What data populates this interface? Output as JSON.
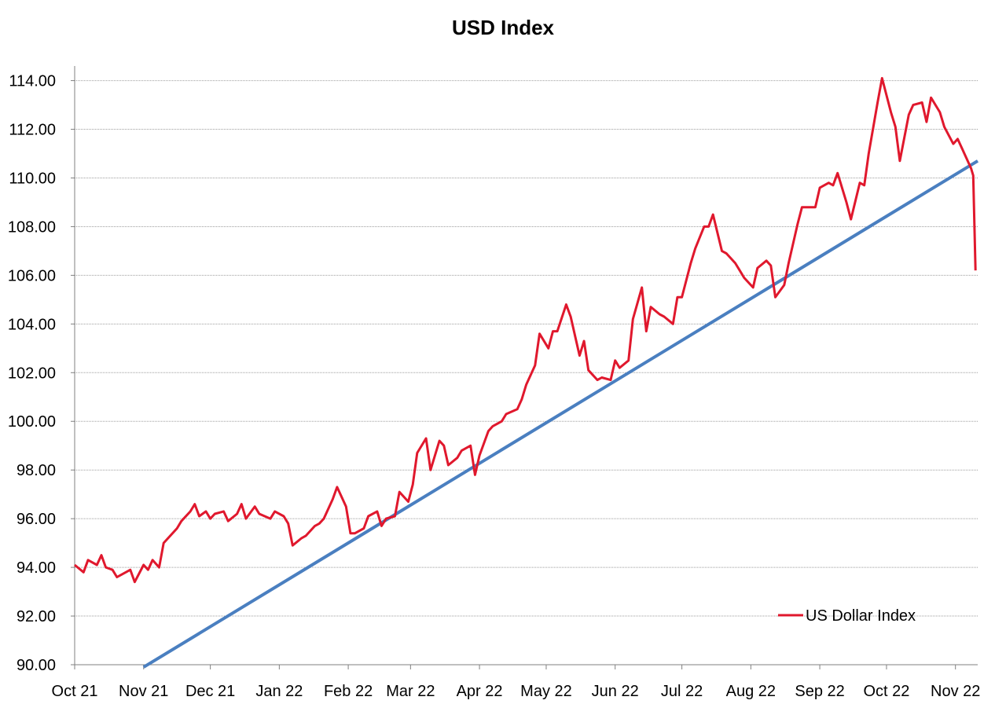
{
  "chart_data": {
    "type": "line",
    "title": "USD Index",
    "xlabel": "",
    "ylabel": "",
    "ylim": [
      90,
      114.6
    ],
    "yticks": [
      "90.00",
      "92.00",
      "94.00",
      "96.00",
      "98.00",
      "100.00",
      "102.00",
      "104.00",
      "106.00",
      "108.00",
      "110.00",
      "112.00",
      "114.00"
    ],
    "ytick_values": [
      90,
      92,
      94,
      96,
      98,
      100,
      102,
      104,
      106,
      108,
      110,
      112,
      114
    ],
    "xlim": [
      "2021-10-01",
      "2022-11-11"
    ],
    "xticks": [
      {
        "label": "Oct 21",
        "date": "2021-10-01"
      },
      {
        "label": "Nov 21",
        "date": "2021-11-01"
      },
      {
        "label": "Dec 21",
        "date": "2021-12-01"
      },
      {
        "label": "Jan 22",
        "date": "2022-01-01"
      },
      {
        "label": "Feb 22",
        "date": "2022-02-01"
      },
      {
        "label": "Mar 22",
        "date": "2022-03-01"
      },
      {
        "label": "Apr 22",
        "date": "2022-04-01"
      },
      {
        "label": "May 22",
        "date": "2022-05-01"
      },
      {
        "label": "Jun 22",
        "date": "2022-06-01"
      },
      {
        "label": "Jul 22",
        "date": "2022-07-01"
      },
      {
        "label": "Aug 22",
        "date": "2022-08-01"
      },
      {
        "label": "Sep 22",
        "date": "2022-09-01"
      },
      {
        "label": "Oct 22",
        "date": "2022-10-01"
      },
      {
        "label": "Nov 22",
        "date": "2022-11-01"
      }
    ],
    "grid": true,
    "legend_placement": "bottom-right",
    "series": [
      {
        "name": "US Dollar Index",
        "color": "#e0182d",
        "x": [
          "2021-10-01",
          "2021-10-05",
          "2021-10-07",
          "2021-10-11",
          "2021-10-13",
          "2021-10-15",
          "2021-10-18",
          "2021-10-20",
          "2021-10-22",
          "2021-10-26",
          "2021-10-28",
          "2021-11-01",
          "2021-11-03",
          "2021-11-05",
          "2021-11-08",
          "2021-11-10",
          "2021-11-12",
          "2021-11-16",
          "2021-11-18",
          "2021-11-22",
          "2021-11-24",
          "2021-11-26",
          "2021-11-29",
          "2021-12-01",
          "2021-12-03",
          "2021-12-07",
          "2021-12-09",
          "2021-12-13",
          "2021-12-15",
          "2021-12-17",
          "2021-12-21",
          "2021-12-23",
          "2021-12-28",
          "2021-12-30",
          "2022-01-03",
          "2022-01-05",
          "2022-01-07",
          "2022-01-11",
          "2022-01-13",
          "2022-01-17",
          "2022-01-19",
          "2022-01-21",
          "2022-01-25",
          "2022-01-27",
          "2022-01-31",
          "2022-02-02",
          "2022-02-04",
          "2022-02-08",
          "2022-02-10",
          "2022-02-14",
          "2022-02-16",
          "2022-02-18",
          "2022-02-22",
          "2022-02-24",
          "2022-02-28",
          "2022-03-02",
          "2022-03-04",
          "2022-03-08",
          "2022-03-10",
          "2022-03-14",
          "2022-03-16",
          "2022-03-18",
          "2022-03-22",
          "2022-03-24",
          "2022-03-28",
          "2022-03-30",
          "2022-04-01",
          "2022-04-05",
          "2022-04-07",
          "2022-04-11",
          "2022-04-13",
          "2022-04-18",
          "2022-04-20",
          "2022-04-22",
          "2022-04-26",
          "2022-04-28",
          "2022-05-02",
          "2022-05-04",
          "2022-05-06",
          "2022-05-10",
          "2022-05-12",
          "2022-05-16",
          "2022-05-18",
          "2022-05-20",
          "2022-05-24",
          "2022-05-26",
          "2022-05-30",
          "2022-06-01",
          "2022-06-03",
          "2022-06-07",
          "2022-06-09",
          "2022-06-13",
          "2022-06-15",
          "2022-06-17",
          "2022-06-21",
          "2022-06-23",
          "2022-06-27",
          "2022-06-29",
          "2022-07-01",
          "2022-07-05",
          "2022-07-07",
          "2022-07-11",
          "2022-07-13",
          "2022-07-15",
          "2022-07-19",
          "2022-07-21",
          "2022-07-25",
          "2022-07-27",
          "2022-07-29",
          "2022-08-02",
          "2022-08-04",
          "2022-08-08",
          "2022-08-10",
          "2022-08-12",
          "2022-08-16",
          "2022-08-18",
          "2022-08-22",
          "2022-08-24",
          "2022-08-26",
          "2022-08-30",
          "2022-09-01",
          "2022-09-05",
          "2022-09-07",
          "2022-09-09",
          "2022-09-13",
          "2022-09-15",
          "2022-09-19",
          "2022-09-21",
          "2022-09-23",
          "2022-09-27",
          "2022-09-29",
          "2022-10-03",
          "2022-10-05",
          "2022-10-07",
          "2022-10-11",
          "2022-10-13",
          "2022-10-17",
          "2022-10-19",
          "2022-10-21",
          "2022-10-25",
          "2022-10-27",
          "2022-10-31",
          "2022-11-02",
          "2022-11-04",
          "2022-11-08",
          "2022-11-09",
          "2022-11-10"
        ],
        "values": [
          94.1,
          93.8,
          94.3,
          94.1,
          94.5,
          94.0,
          93.9,
          93.6,
          93.7,
          93.9,
          93.4,
          94.1,
          93.9,
          94.3,
          94.0,
          95.0,
          95.2,
          95.6,
          95.9,
          96.3,
          96.6,
          96.1,
          96.3,
          96.0,
          96.2,
          96.3,
          95.9,
          96.2,
          96.6,
          96.0,
          96.5,
          96.2,
          96.0,
          96.3,
          96.1,
          95.8,
          94.9,
          95.2,
          95.3,
          95.7,
          95.8,
          96.0,
          96.8,
          97.3,
          96.5,
          95.4,
          95.4,
          95.6,
          96.1,
          96.3,
          95.7,
          96.0,
          96.1,
          97.1,
          96.7,
          97.4,
          98.7,
          99.3,
          98.0,
          99.2,
          99.0,
          98.2,
          98.5,
          98.8,
          99.0,
          97.8,
          98.6,
          99.6,
          99.8,
          100.0,
          100.3,
          100.5,
          100.9,
          101.5,
          102.3,
          103.6,
          103.0,
          103.7,
          103.7,
          104.8,
          104.3,
          102.7,
          103.3,
          102.1,
          101.7,
          101.8,
          101.7,
          102.5,
          102.2,
          102.5,
          104.2,
          105.5,
          103.7,
          104.7,
          104.4,
          104.3,
          104.0,
          105.1,
          105.1,
          106.5,
          107.1,
          108.0,
          108.0,
          108.5,
          107.0,
          106.9,
          106.5,
          106.2,
          105.9,
          105.5,
          106.3,
          106.6,
          106.4,
          105.1,
          105.6,
          106.5,
          108.1,
          108.8,
          108.8,
          108.8,
          109.6,
          109.8,
          109.7,
          110.2,
          109.0,
          108.3,
          109.8,
          109.7,
          111.0,
          113.1,
          114.1,
          112.7,
          112.1,
          110.7,
          112.6,
          113.0,
          113.1,
          112.3,
          113.3,
          112.7,
          112.1,
          111.4,
          111.6,
          111.2,
          110.4,
          110.1,
          106.2
        ]
      }
    ],
    "trendline": {
      "color": "#4a7fc0",
      "x": [
        "2021-11-01",
        "2022-11-11"
      ],
      "values": [
        89.9,
        110.7
      ]
    }
  }
}
